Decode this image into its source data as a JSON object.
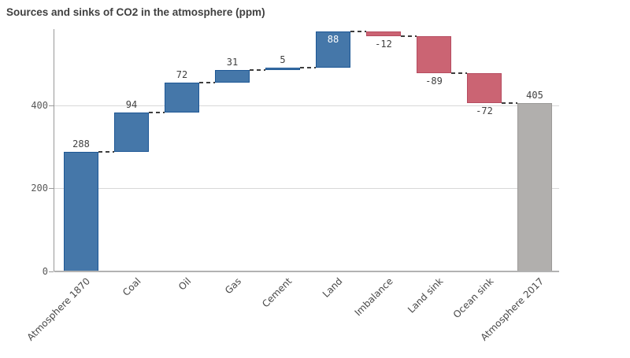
{
  "title": "Sources and sinks of CO2 in the atmosphere (ppm)",
  "chart_data": {
    "type": "bar",
    "subtype": "waterfall",
    "title": "Sources and sinks of CO2 in the atmosphere (ppm)",
    "unit": "ppm",
    "xlabel": "",
    "ylabel": "",
    "ylim": [
      0,
      583
    ],
    "grid": true,
    "legend": false,
    "categories": [
      "Atmosphere 1870",
      "Coal",
      "Oil",
      "Gas",
      "Cement",
      "Land",
      "Imbalance",
      "Land sink",
      "Ocean sink",
      "Atmosphere 2017"
    ],
    "values": [
      288,
      94,
      72,
      31,
      5,
      88,
      -12,
      -89,
      -72,
      405
    ],
    "bars": [
      {
        "category": "Atmosphere 1870",
        "value": 288,
        "label": "288",
        "kind": "increase",
        "start": 0,
        "end": 288,
        "label_pos": "above"
      },
      {
        "category": "Coal",
        "value": 94,
        "label": "94",
        "kind": "increase",
        "start": 288,
        "end": 382,
        "label_pos": "above"
      },
      {
        "category": "Oil",
        "value": 72,
        "label": "72",
        "kind": "increase",
        "start": 382,
        "end": 454,
        "label_pos": "above"
      },
      {
        "category": "Gas",
        "value": 31,
        "label": "31",
        "kind": "increase",
        "start": 454,
        "end": 485,
        "label_pos": "above"
      },
      {
        "category": "Cement",
        "value": 5,
        "label": "5",
        "kind": "increase",
        "start": 485,
        "end": 490,
        "label_pos": "above"
      },
      {
        "category": "Land",
        "value": 88,
        "label": "88",
        "kind": "increase",
        "start": 490,
        "end": 578,
        "label_pos": "inside"
      },
      {
        "category": "Imbalance",
        "value": -12,
        "label": "-12",
        "kind": "decrease",
        "start": 578,
        "end": 566,
        "label_pos": "below"
      },
      {
        "category": "Land sink",
        "value": -89,
        "label": "-89",
        "kind": "decrease",
        "start": 566,
        "end": 477,
        "label_pos": "below"
      },
      {
        "category": "Ocean sink",
        "value": -72,
        "label": "-72",
        "kind": "decrease",
        "start": 477,
        "end": 405,
        "label_pos": "below"
      },
      {
        "category": "Atmosphere 2017",
        "value": 405,
        "label": "405",
        "kind": "total",
        "start": 0,
        "end": 405,
        "label_pos": "above"
      }
    ],
    "yticks": [
      {
        "value": 0,
        "label": "0"
      },
      {
        "value": 200,
        "label": "200"
      },
      {
        "value": 400,
        "label": "400"
      }
    ],
    "colors": {
      "increase": "#4577a9",
      "increase_border": "#1d5795",
      "decrease": "#cb6473",
      "decrease_border": "#b64c60",
      "total": "#b1afad",
      "total_border": "#9c9a98",
      "connector": "#3d3d3d",
      "grid_line": "#d8d8d8",
      "baseline": "#b2b2b2",
      "axis_line": "#999999",
      "label_text": "#404040",
      "inside_label_text": "#ffffff"
    }
  }
}
